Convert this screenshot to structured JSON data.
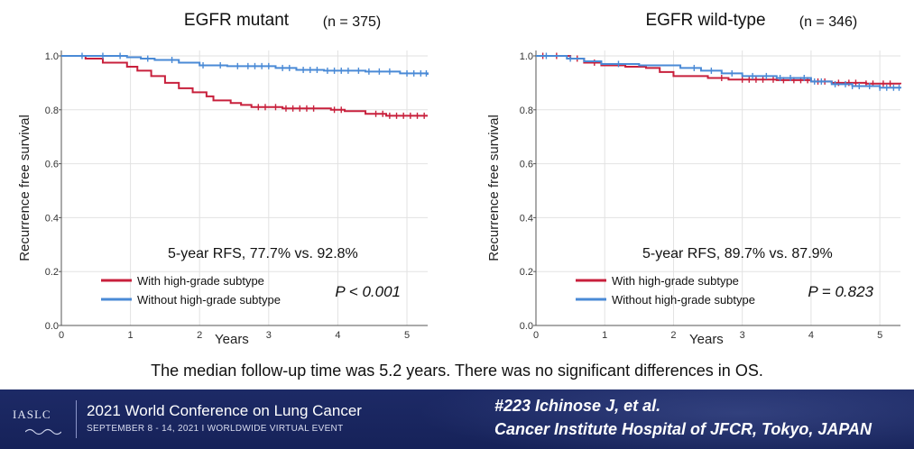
{
  "chart_data": [
    {
      "type": "line",
      "title": "EGFR mutant",
      "n_label": "(n = 375)",
      "xlabel": "Years",
      "ylabel": "Recurrence free survival",
      "xlim": [
        0,
        5.3
      ],
      "ylim": [
        0.0,
        1.02
      ],
      "xticks": [
        "0",
        "1",
        "2",
        "3",
        "4",
        "5"
      ],
      "yticks": [
        "0.0",
        "0.2",
        "0.4",
        "0.6",
        "0.8",
        "1.0"
      ],
      "grid": true,
      "legend_position": "bottom-left",
      "annotation": "5-year RFS, 77.7% vs. 92.8%",
      "p_value": "P < 0.001",
      "series": [
        {
          "name": "With high-grade subtype",
          "color": "#c8203c",
          "points": [
            [
              0,
              1.0
            ],
            [
              0.35,
              0.99
            ],
            [
              0.6,
              0.975
            ],
            [
              0.95,
              0.96
            ],
            [
              1.1,
              0.945
            ],
            [
              1.3,
              0.925
            ],
            [
              1.5,
              0.9
            ],
            [
              1.7,
              0.88
            ],
            [
              1.9,
              0.865
            ],
            [
              2.1,
              0.85
            ],
            [
              2.2,
              0.835
            ],
            [
              2.45,
              0.825
            ],
            [
              2.6,
              0.818
            ],
            [
              2.75,
              0.81
            ],
            [
              3.2,
              0.805
            ],
            [
              3.5,
              0.805
            ],
            [
              3.9,
              0.8
            ],
            [
              4.1,
              0.795
            ],
            [
              4.4,
              0.785
            ],
            [
              4.7,
              0.778
            ],
            [
              5.3,
              0.778
            ]
          ],
          "censor_x": [
            2.85,
            2.95,
            3.1,
            3.25,
            3.35,
            3.45,
            3.55,
            3.65,
            3.95,
            4.05,
            4.55,
            4.65,
            4.75,
            4.85,
            4.95,
            5.05,
            5.15,
            5.25
          ]
        },
        {
          "name": "Without high-grade subtype",
          "color": "#4a8ad6",
          "points": [
            [
              0,
              1.0
            ],
            [
              0.95,
              0.995
            ],
            [
              1.15,
              0.99
            ],
            [
              1.35,
              0.985
            ],
            [
              1.7,
              0.975
            ],
            [
              2.0,
              0.965
            ],
            [
              2.4,
              0.962
            ],
            [
              3.1,
              0.955
            ],
            [
              3.4,
              0.948
            ],
            [
              3.8,
              0.945
            ],
            [
              4.4,
              0.942
            ],
            [
              4.9,
              0.935
            ],
            [
              5.3,
              0.93
            ]
          ],
          "censor_x": [
            0.3,
            0.6,
            0.85,
            1.25,
            1.6,
            2.05,
            2.3,
            2.55,
            2.7,
            2.8,
            2.9,
            3.0,
            3.2,
            3.3,
            3.5,
            3.6,
            3.7,
            3.85,
            3.95,
            4.05,
            4.15,
            4.3,
            4.45,
            4.6,
            4.75,
            5.0,
            5.1,
            5.2,
            5.28
          ]
        }
      ]
    },
    {
      "type": "line",
      "title": "EGFR wild-type",
      "n_label": "(n = 346)",
      "xlabel": "Years",
      "ylabel": "Recurrence free survival",
      "xlim": [
        0,
        5.3
      ],
      "ylim": [
        0.0,
        1.02
      ],
      "xticks": [
        "0",
        "1",
        "2",
        "3",
        "4",
        "5"
      ],
      "yticks": [
        "0.0",
        "0.2",
        "0.4",
        "0.6",
        "0.8",
        "1.0"
      ],
      "grid": true,
      "legend_position": "bottom-left",
      "annotation": "5-year RFS, 89.7% vs. 87.9%",
      "p_value": "P = 0.823",
      "series": [
        {
          "name": "With high-grade subtype",
          "color": "#c8203c",
          "points": [
            [
              0,
              1.0
            ],
            [
              0.5,
              0.99
            ],
            [
              0.7,
              0.975
            ],
            [
              0.95,
              0.965
            ],
            [
              1.3,
              0.96
            ],
            [
              1.6,
              0.955
            ],
            [
              1.8,
              0.94
            ],
            [
              2.0,
              0.925
            ],
            [
              2.5,
              0.918
            ],
            [
              2.8,
              0.912
            ],
            [
              3.5,
              0.91
            ],
            [
              4.0,
              0.905
            ],
            [
              4.3,
              0.9
            ],
            [
              4.8,
              0.897
            ],
            [
              5.3,
              0.895
            ]
          ],
          "censor_x": [
            0.1,
            0.3,
            0.6,
            0.85,
            2.7,
            3.0,
            3.1,
            3.2,
            3.3,
            3.45,
            3.6,
            3.75,
            3.85,
            3.95,
            4.1,
            4.2,
            4.4,
            4.55,
            4.65,
            4.8,
            4.9,
            5.05,
            5.15
          ]
        },
        {
          "name": "Without high-grade subtype",
          "color": "#4a8ad6",
          "points": [
            [
              0,
              1.0
            ],
            [
              0.45,
              0.99
            ],
            [
              0.7,
              0.98
            ],
            [
              0.95,
              0.97
            ],
            [
              1.5,
              0.965
            ],
            [
              2.1,
              0.955
            ],
            [
              2.4,
              0.945
            ],
            [
              2.7,
              0.935
            ],
            [
              3.0,
              0.925
            ],
            [
              3.5,
              0.918
            ],
            [
              4.0,
              0.905
            ],
            [
              4.3,
              0.895
            ],
            [
              4.6,
              0.888
            ],
            [
              5.0,
              0.882
            ],
            [
              5.3,
              0.879
            ]
          ],
          "censor_x": [
            0.15,
            0.5,
            1.2,
            2.3,
            2.55,
            2.85,
            3.15,
            3.35,
            3.55,
            3.7,
            3.9,
            4.05,
            4.15,
            4.35,
            4.5,
            4.6,
            4.7,
            4.85,
            5.0,
            5.1,
            5.2,
            5.28
          ]
        }
      ]
    }
  ],
  "footnote": "The median follow-up time was 5.2 years. There was no significant differences in OS.",
  "footer": {
    "logo_text": "IASLC",
    "conference_title": "2021 World Conference on Lung Cancer",
    "conference_subtitle": "SEPTEMBER 8 - 14, 2021 I WORLDWIDE VIRTUAL EVENT",
    "citation_line1": "#223  Ichinose J, et al.",
    "citation_line2": "Cancer Institute Hospital of JFCR, Tokyo, JAPAN",
    "bg_color": "#1b2863"
  }
}
